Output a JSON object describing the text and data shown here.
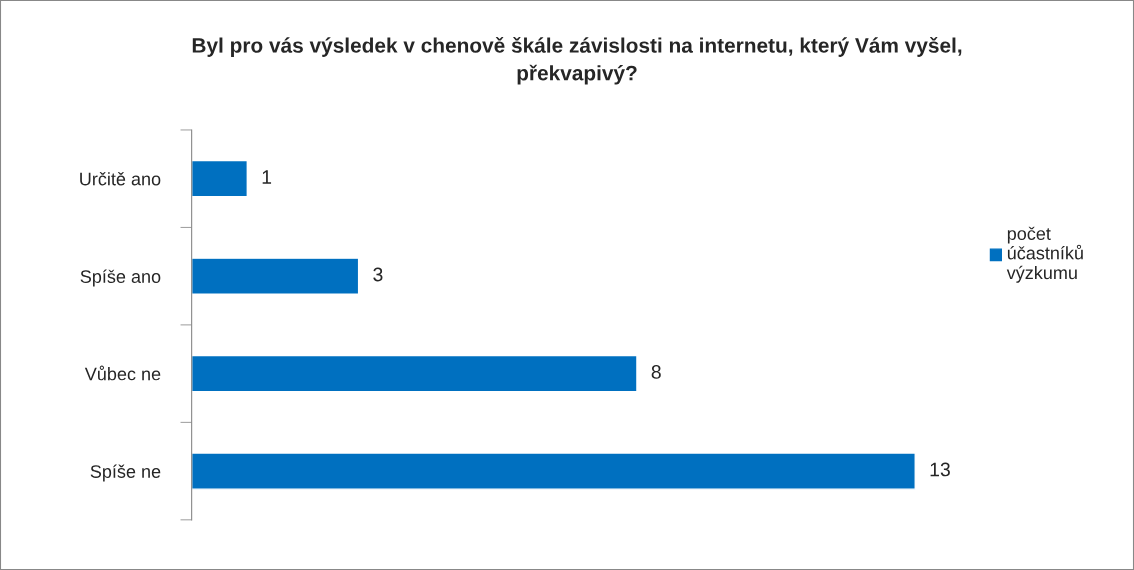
{
  "chart_data": {
    "type": "bar",
    "orientation": "horizontal",
    "title": "Byl pro vás výsledek v chenově škále závislosti na internetu, který Vám vyšel, překvapivý?",
    "categories": [
      "Určitě ano",
      "Spíše ano",
      "Vůbec ne",
      "Spíše ne"
    ],
    "series": [
      {
        "name": "počet účastníků výzkumu",
        "color": "#0070c0",
        "values": [
          1,
          3,
          8,
          13
        ]
      }
    ],
    "data_labels": true,
    "legend": "right",
    "grid": false
  }
}
